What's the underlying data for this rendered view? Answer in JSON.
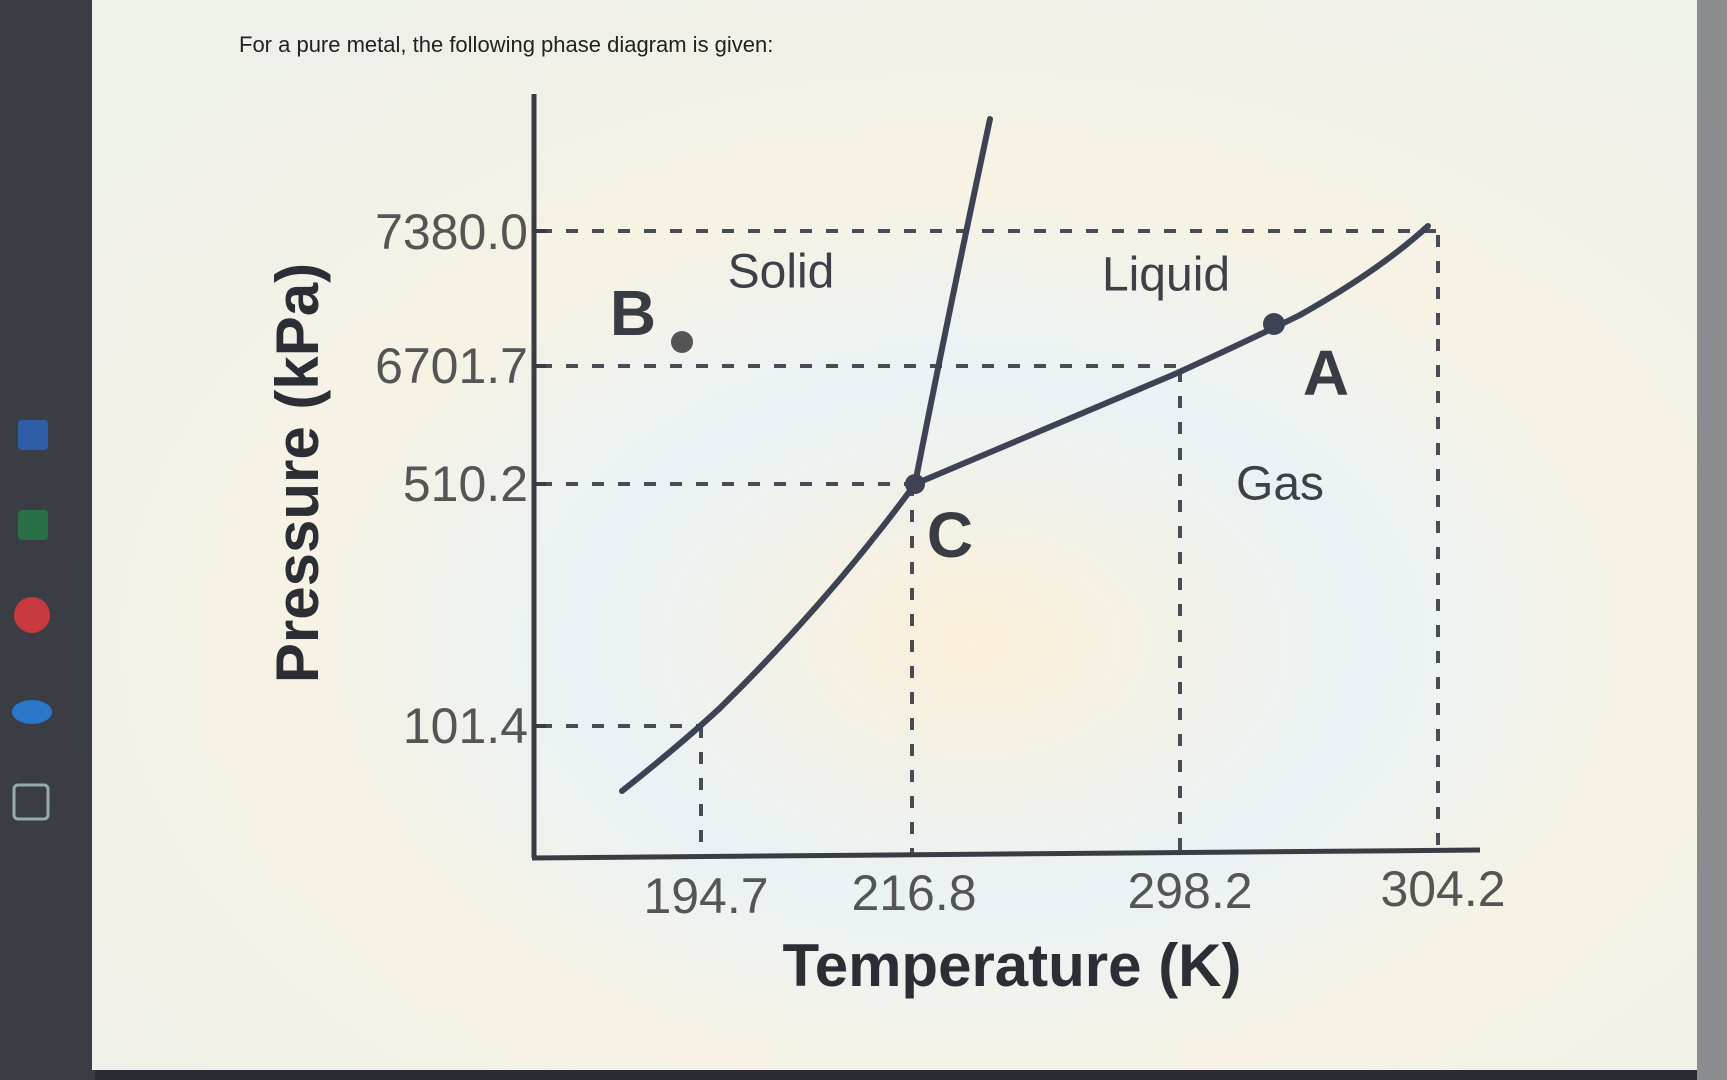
{
  "header": {
    "prompt": "For a pure metal, the following phase diagram is given:"
  },
  "diagram": {
    "y_axis_title": "Pressure (kPa)",
    "x_axis_title": "Temperature (K)",
    "y_tick_labels": [
      "7380.0",
      "6701.7",
      "510.2",
      "101.4"
    ],
    "x_tick_labels": [
      "194.7",
      "216.8",
      "298.2",
      "304.2"
    ],
    "regions": [
      "Solid",
      "Liquid",
      "Gas"
    ],
    "points": [
      "A",
      "B",
      "C"
    ]
  }
}
